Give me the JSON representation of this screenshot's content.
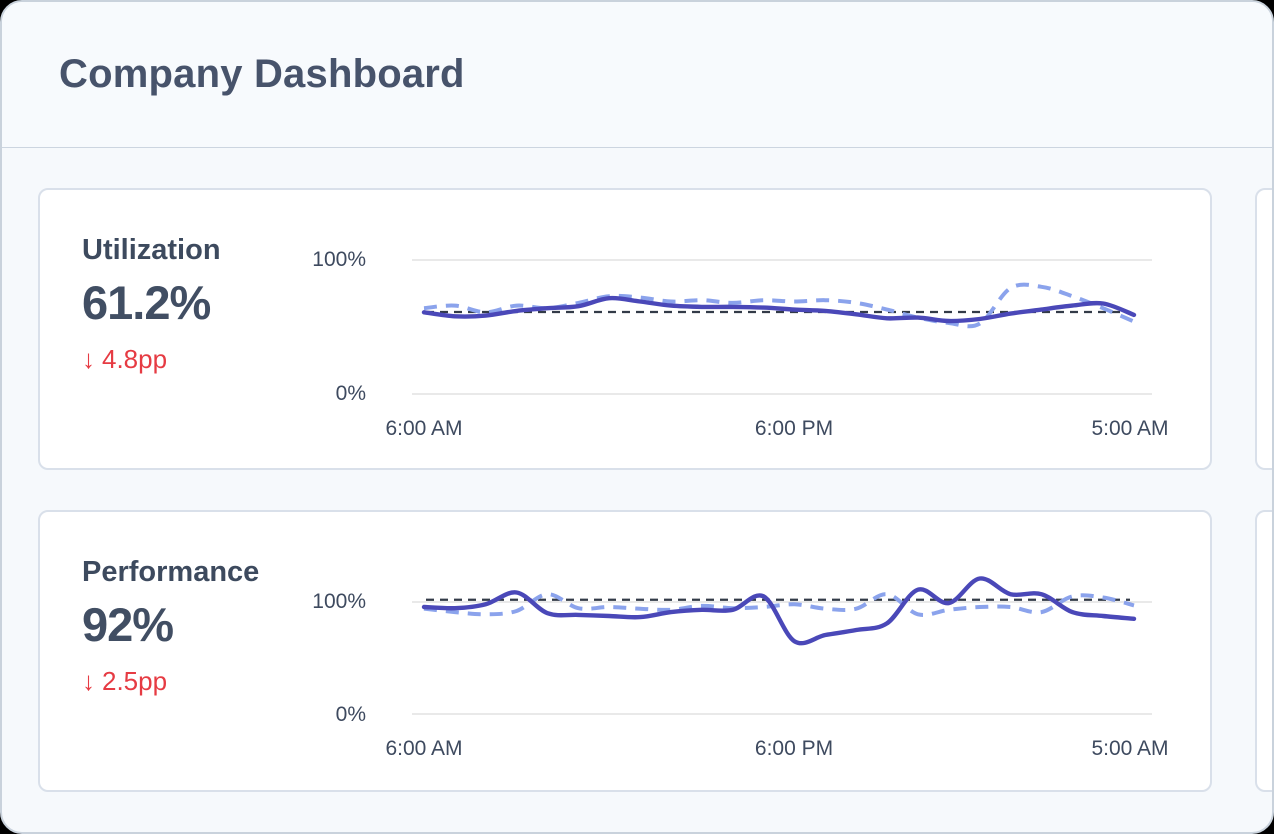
{
  "window": {
    "title": "Company Dashboard"
  },
  "cards": [
    {
      "metric": "Utilization",
      "value": "61.2%",
      "delta": "4.8pp",
      "delta_arrow": "↓",
      "trend": "down"
    },
    {
      "metric": "Performance",
      "value": "92%",
      "delta": "2.5pp",
      "delta_arrow": "↓",
      "trend": "down"
    }
  ],
  "chart_data": [
    {
      "type": "line",
      "title": "Utilization",
      "ylim": [
        0,
        100
      ],
      "y_ticks": [
        "100%",
        "0%"
      ],
      "x_ticks": [
        "6:00 AM",
        "6:00 PM",
        "5:00 AM"
      ],
      "grid": "horizontal-only",
      "legend": "none",
      "reference": 61.2,
      "series": [
        {
          "name": "current",
          "style": "solid",
          "values": [
            61,
            58,
            58.5,
            62,
            64,
            65.5,
            71.5,
            69,
            66,
            65,
            65,
            64.5,
            63,
            62,
            59.5,
            56.5,
            57,
            54.5,
            56,
            60,
            63,
            66,
            67.5,
            59
          ]
        },
        {
          "name": "previous",
          "style": "dashed",
          "values": [
            64,
            66,
            61,
            66,
            64,
            68,
            73,
            72,
            69,
            70,
            68,
            70,
            69,
            70,
            68,
            63,
            57,
            53,
            52.5,
            79,
            80,
            73,
            64,
            54
          ]
        }
      ]
    },
    {
      "type": "line",
      "title": "Performance",
      "ylim": [
        0,
        100
      ],
      "y_ticks": [
        "100%",
        "0%"
      ],
      "x_ticks": [
        "6:00 AM",
        "6:00 PM",
        "5:00 AM"
      ],
      "grid": "horizontal-only",
      "legend": "none",
      "reference": 102,
      "series": [
        {
          "name": "current",
          "style": "solid",
          "values": [
            95.5,
            94.5,
            98,
            108.5,
            90,
            88.5,
            87.5,
            86.5,
            91,
            93,
            93,
            105,
            65,
            70.5,
            75,
            81,
            111,
            99,
            121,
            107,
            107,
            91,
            87.5,
            85
          ]
        },
        {
          "name": "previous",
          "style": "dashed",
          "values": [
            94,
            91,
            89,
            92,
            107,
            94.5,
            95.5,
            94,
            93,
            96.5,
            94.5,
            95.5,
            98,
            94,
            94,
            107,
            89,
            93,
            95.5,
            95.5,
            91,
            105,
            104,
            97
          ]
        }
      ]
    }
  ],
  "colors": {
    "solid_line": "#4a48b8",
    "dashed_line": "#8ba3ec",
    "reference_line": "#333b48",
    "grid_line": "#dcdcdc",
    "delta_negative": "#e63b43",
    "card_background": "#ffffff",
    "page_background": "#f6f9fc",
    "text_dark": "#3d4a5e"
  }
}
